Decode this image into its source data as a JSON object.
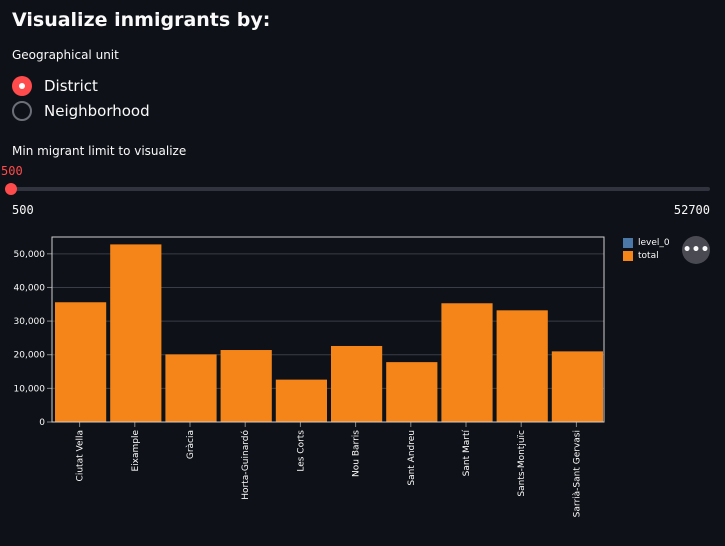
{
  "page": {
    "title": "Visualize inmigrants by:"
  },
  "geo": {
    "label": "Geographical unit",
    "options": [
      "District",
      "Neighborhood"
    ],
    "selected": "District"
  },
  "slider": {
    "label": "Min migrant limit to visualize",
    "value": "500",
    "min": "500",
    "max": "52700",
    "fraction": 0
  },
  "menu": {
    "icon": "more-horizontal-icon",
    "glyph": "•••"
  },
  "colors": {
    "accent": "#ff4b4b",
    "bar": "#f58518",
    "level0": "#4c78a8",
    "background": "#0e1117"
  },
  "chart_data": {
    "type": "bar",
    "categories": [
      "Ciutat Vella",
      "Eixample",
      "Gràcia",
      "Horta-Guinardó",
      "Les Corts",
      "Nou Barris",
      "Sant Andreu",
      "Sant Martí",
      "Sants-Montjuïc",
      "Sarrià-Sant Gervasi"
    ],
    "series": [
      {
        "name": "level_0",
        "values": [
          0,
          0,
          0,
          0,
          0,
          0,
          0,
          0,
          0,
          0
        ]
      },
      {
        "name": "total",
        "values": [
          35600,
          52800,
          20100,
          21400,
          12600,
          22600,
          17800,
          35300,
          33200,
          21000
        ]
      }
    ],
    "ylim": [
      0,
      55000
    ],
    "yticks": [
      0,
      10000,
      20000,
      30000,
      40000,
      50000
    ],
    "ytick_labels": [
      "0",
      "10,000",
      "20,000",
      "30,000",
      "40,000",
      "50,000"
    ],
    "grid": true,
    "legend": "top-right"
  }
}
